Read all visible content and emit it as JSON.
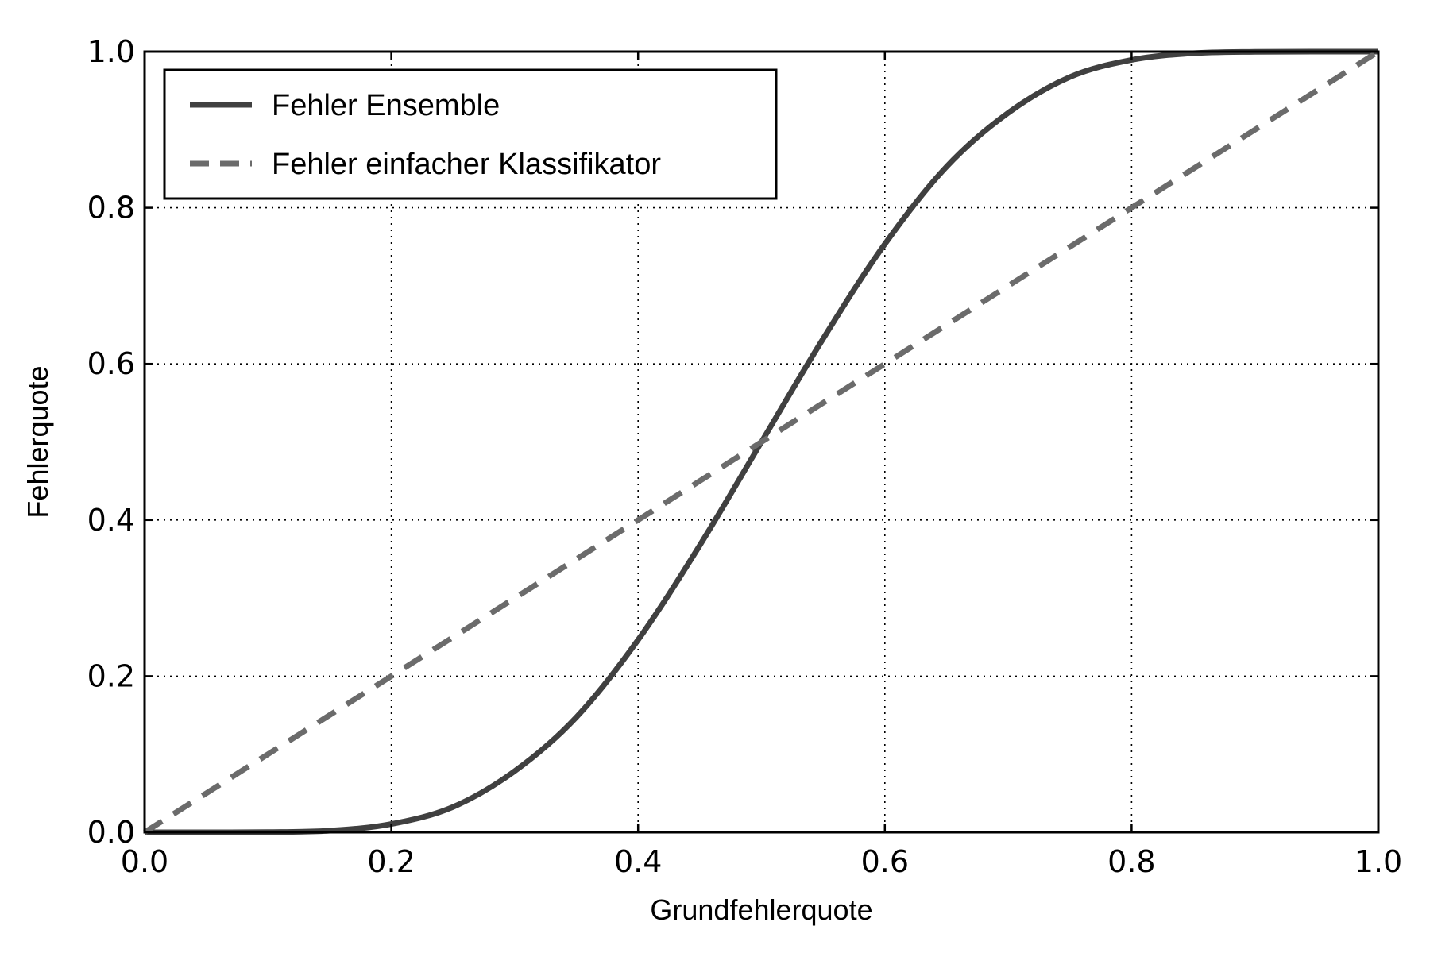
{
  "chart_data": {
    "type": "line",
    "title": "",
    "xlabel": "Grundfehlerquote",
    "ylabel": "Fehlerquote",
    "xlim": [
      0.0,
      1.0
    ],
    "ylim": [
      0.0,
      1.0
    ],
    "xticks": [
      "0.0",
      "0.2",
      "0.4",
      "0.6",
      "0.8",
      "1.0"
    ],
    "yticks": [
      "0.0",
      "0.2",
      "0.4",
      "0.6",
      "0.8",
      "1.0"
    ],
    "grid": true,
    "grid_style": "dotted",
    "legend_position": "top-left",
    "x": [
      0.0,
      0.05,
      0.1,
      0.15,
      0.2,
      0.25,
      0.3,
      0.35,
      0.4,
      0.45,
      0.5,
      0.55,
      0.6,
      0.65,
      0.7,
      0.75,
      0.8,
      0.85,
      0.9,
      0.95,
      1.0
    ],
    "series": [
      {
        "name": "Fehler Ensemble",
        "style": "solid",
        "color": "#404040",
        "values": [
          0.0,
          0.0,
          0.0002,
          0.002,
          0.0106,
          0.0325,
          0.0784,
          0.1474,
          0.2465,
          0.3676,
          0.5,
          0.6324,
          0.7535,
          0.8526,
          0.9216,
          0.9675,
          0.9894,
          0.998,
          0.9998,
          1.0,
          1.0
        ]
      },
      {
        "name": "Fehler einfacher Klassifikator",
        "style": "dashed",
        "color": "#6b6b6b",
        "values": [
          0.0,
          0.05,
          0.1,
          0.15,
          0.2,
          0.25,
          0.3,
          0.35,
          0.4,
          0.45,
          0.5,
          0.55,
          0.6,
          0.65,
          0.7,
          0.75,
          0.8,
          0.85,
          0.9,
          0.95,
          1.0
        ]
      }
    ]
  }
}
